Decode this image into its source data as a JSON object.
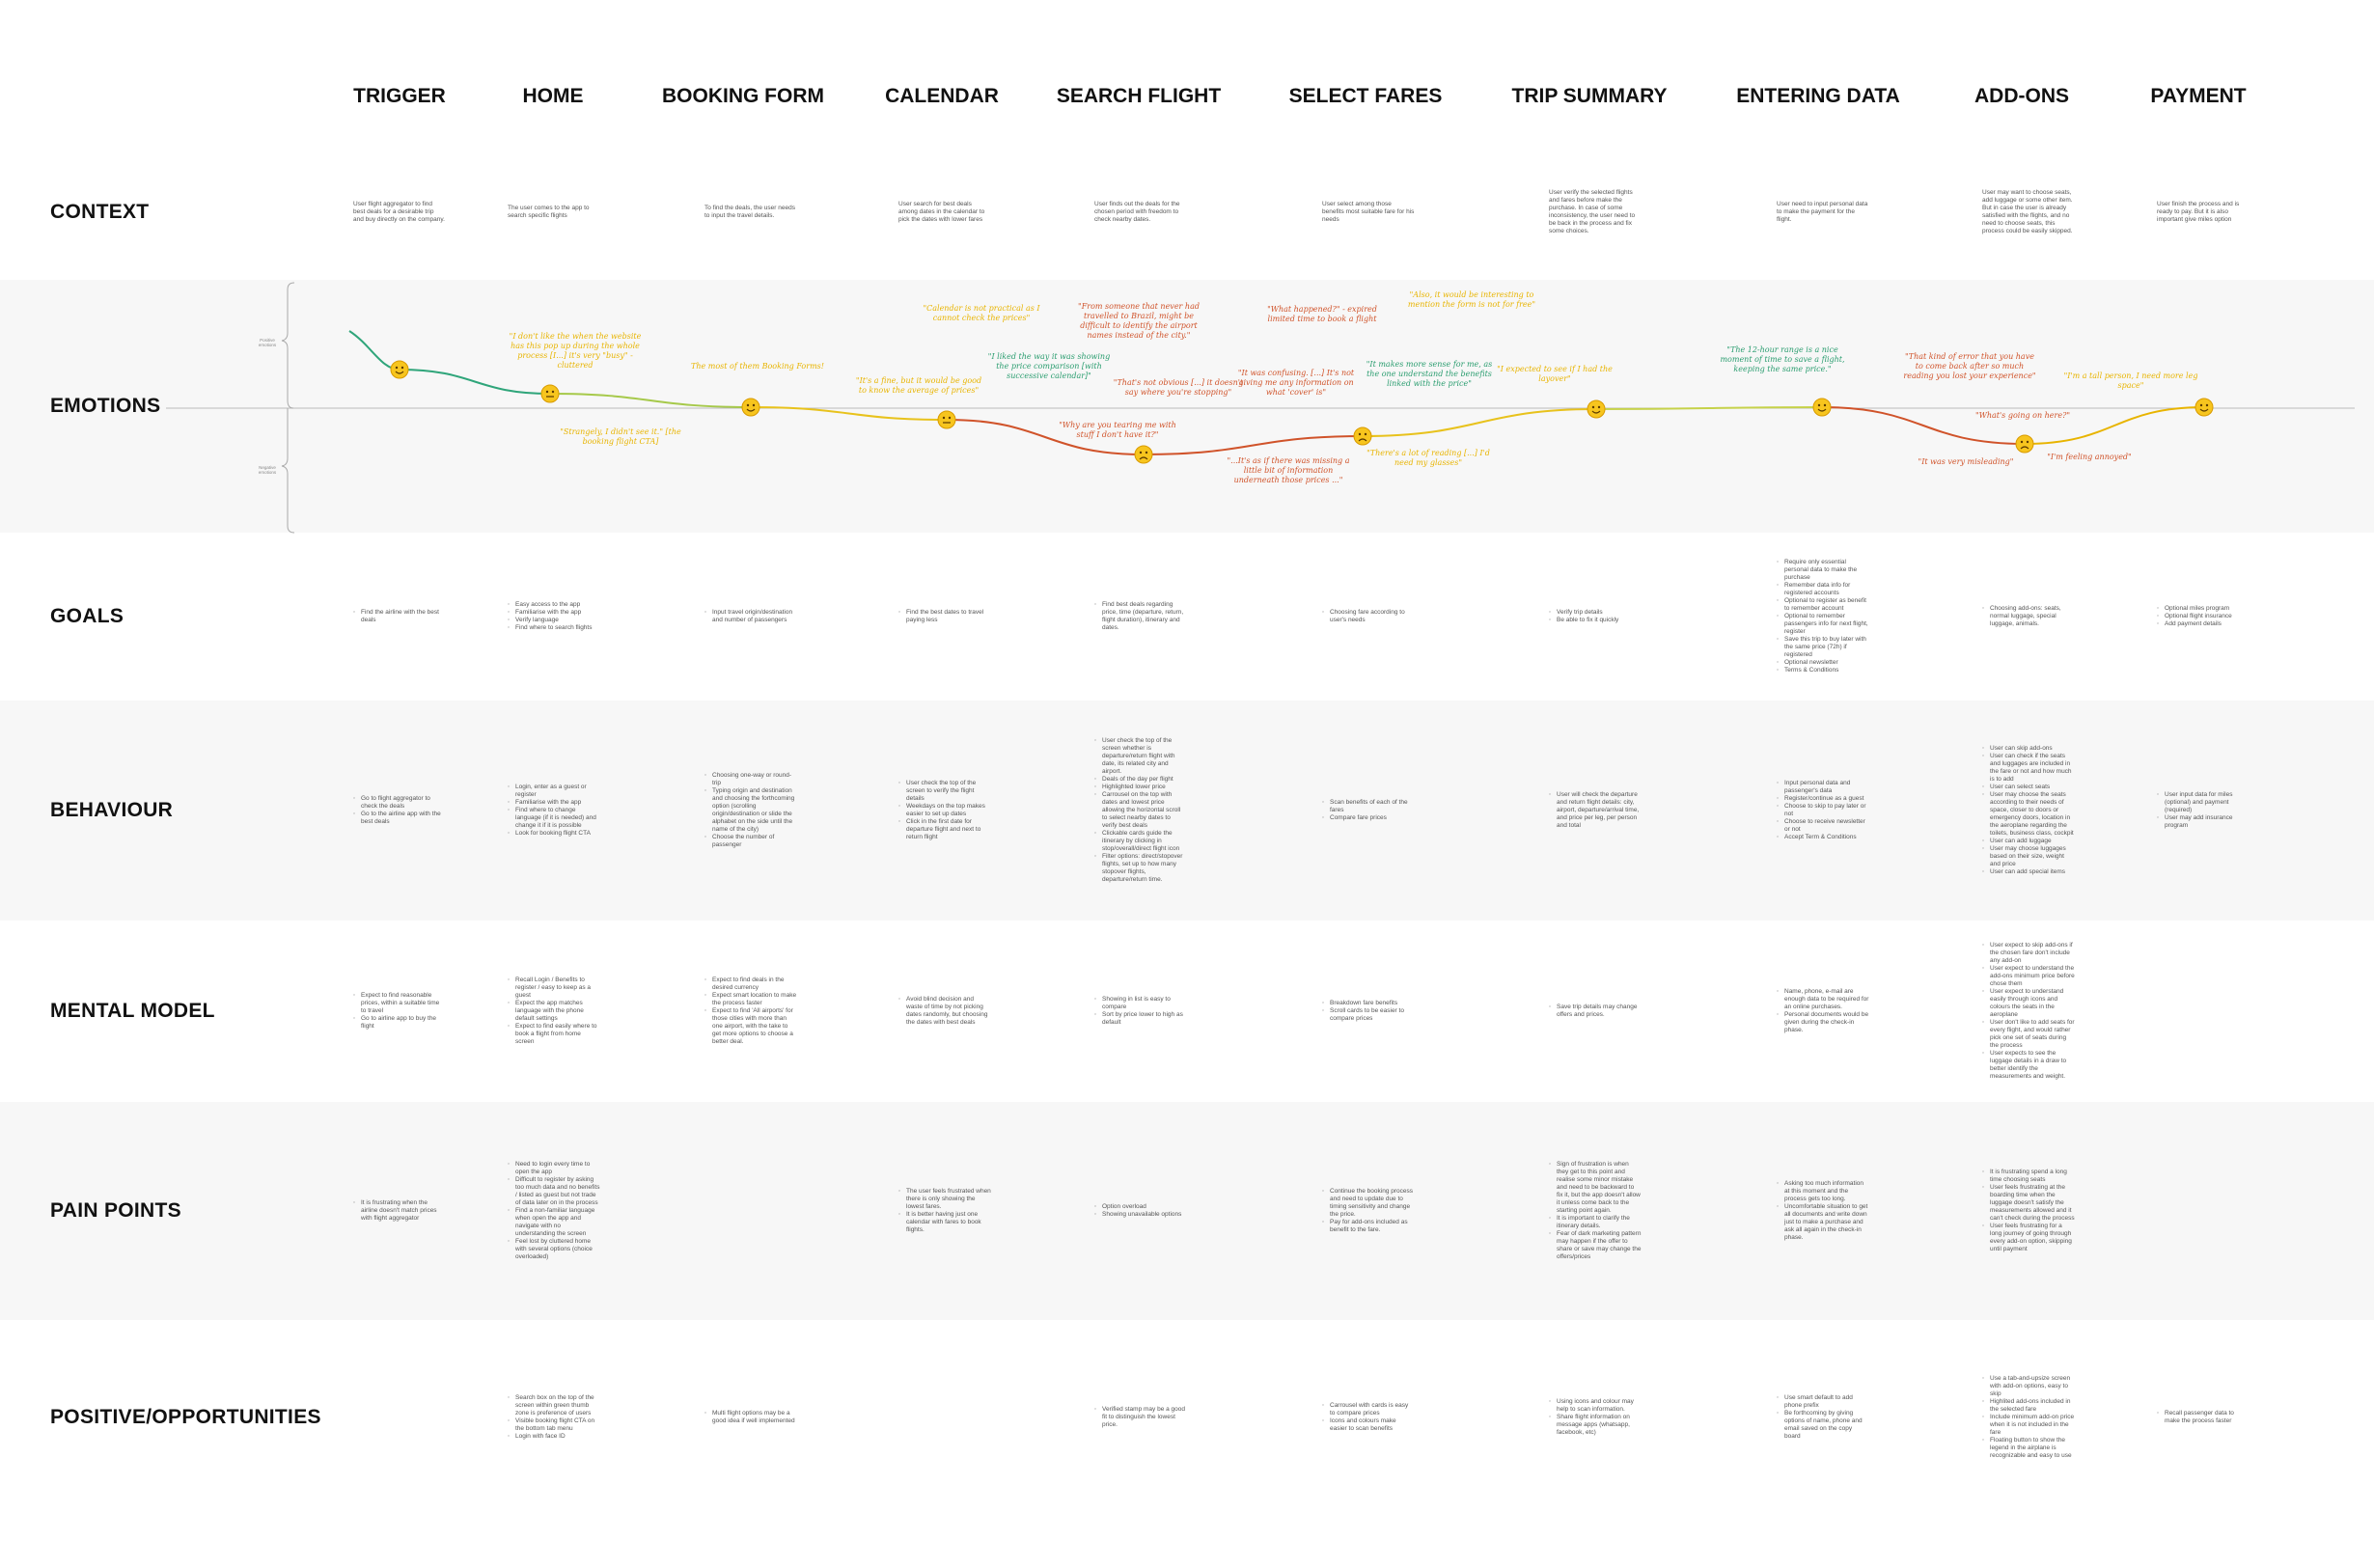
{
  "columns": [
    "TRIGGER",
    "HOME",
    "BOOKING FORM",
    "CALENDAR",
    "SEARCH FLIGHT",
    "SELECT FARES",
    "TRIP SUMMARY",
    "ENTERING DATA",
    "ADD-ONS",
    "PAYMENT"
  ],
  "rows": {
    "context": {
      "label": "CONTEXT",
      "cells": [
        "User flight aggregator to find best deals for a desirable trip and buy directly on the company.",
        "The user comes to the app to search specific flights",
        "To find the deals, the user needs to input the travel details.",
        "User search for best deals among dates in the calendar to pick the dates with lower fares",
        "User finds out the deals for the chosen period with freedom to check nearby dates.",
        "User select among those benefits most suitable fare for his needs",
        "User verify the selected flights and fares before make the purchase. In case of some inconsistency, the user need to be back in the process and fix some choices.",
        "User need to input personal data to make the payment for the flight.",
        "User may want to choose seats, add luggage or some other item. But in case the user is already satisfied with the flights, and no need to choose seats, this process could be easily skipped.",
        "User finish the process and is ready to pay. But it is also important give miles option"
      ]
    },
    "emotions": {
      "label": "EMOTIONS",
      "scale": [
        "Positive emotions",
        "Negative emotions"
      ],
      "quotes": [
        {
          "text": "\"I don't like the when the website has this pop up during the whole process [I...] it's very \"busy\" - cluttered",
          "color": "#e8b400"
        },
        {
          "text": "\"Strangely, I didn't see it.\" [the booking flight CTA]",
          "color": "#e8b400"
        },
        {
          "text": "The most of them Booking Forms!",
          "color": "#e8b400"
        },
        {
          "text": "\"It's a fine, but it would be good to know the average of prices\"",
          "color": "#e8b400"
        },
        {
          "text": "\"Calendar is not practical as I cannot check the prices\"",
          "color": "#e8b400"
        },
        {
          "text": "\"I liked the way it was showing the price comparison [with successive calendar]\"",
          "color": "#2a9d6f"
        },
        {
          "text": "\"From someone that never had travelled to Brazil, might be difficult to identify the airport names instead of the city.\"",
          "color": "#d0532a"
        },
        {
          "text": "\"That's not obvious [...] it doesn't say where you're stopping\"",
          "color": "#d0532a"
        },
        {
          "text": "\"Why are you tearing me with stuff I don't have it?\"",
          "color": "#d0532a"
        },
        {
          "text": "\"What happened?\" - expired limited time to book a flight",
          "color": "#d0532a"
        },
        {
          "text": "\"It was confusing. [...] It's not giving me any information on what 'cover' is\"",
          "color": "#d0532a"
        },
        {
          "text": "\"...It's as if there was missing a little bit of information underneath those prices ...\"",
          "color": "#d0532a"
        },
        {
          "text": "\"It makes more sense for me, as the one understand the benefits linked with the price\"",
          "color": "#2a9d6f"
        },
        {
          "text": "\"Also, it would be interesting to mention the form is not for free\"",
          "color": "#e8b400"
        },
        {
          "text": "\"There's a lot of reading [...] I'd need my glasses\"",
          "color": "#e8b400"
        },
        {
          "text": "\"I expected to see if I had the layover\"",
          "color": "#e8b400"
        },
        {
          "text": "\"The 12-hour range is a nice moment of time to save a flight, keeping the same price.\"",
          "color": "#2a9d6f"
        },
        {
          "text": "\"That kind of error that you have to come back after so much reading you lost your experience\"",
          "color": "#d0532a"
        },
        {
          "text": "\"What's going on here?\"",
          "color": "#d0532a"
        },
        {
          "text": "\"It was very misleading\"",
          "color": "#d0532a"
        },
        {
          "text": "\"I'm feeling annoyed\"",
          "color": "#d0532a"
        },
        {
          "text": "\"I'm a tall person, I need more leg space\"",
          "color": "#e8b400"
        }
      ]
    },
    "goals": {
      "label": "GOALS",
      "cells": [
        [
          "Find the airline with the best deals"
        ],
        [
          "Easy access to the app",
          "Familiarise with the app",
          "Verify language",
          "Find where to search flights"
        ],
        [
          "Input travel origin/destination and number of passengers"
        ],
        [
          "Find the best dates to travel paying less"
        ],
        [
          "Find best deals regarding price, time (departure, return, flight duration), itinerary and dates."
        ],
        [
          "Choosing fare according to user's needs"
        ],
        [
          "Verify trip details",
          "Be able to fix it quickly"
        ],
        [
          "Require only essential personal data to make the purchase",
          "Remember data info for registered accounts",
          "Optional to register as benefit to remember account",
          "Optional to remember passengers info for next flight, register",
          "Save this trip to buy later with the same price (72h) if registered",
          "Optional newsletter",
          "Terms & Conditions"
        ],
        [
          "Choosing add-ons: seats, normal luggage, special luggage, animals."
        ],
        [
          "Optional miles program",
          "Optional flight insurance",
          "Add payment details"
        ]
      ]
    },
    "behaviour": {
      "label": "BEHAVIOUR",
      "cells": [
        [
          "Go to flight aggregator to check the deals",
          "Go to the airline app with the best deals"
        ],
        [
          "Login, enter as a guest or register",
          "Familiarise with the app",
          "Find where to change language (if it is needed) and change it if it is possible",
          "Look for booking flight CTA"
        ],
        [
          "Choosing one-way or round-trip",
          "Typing origin and destination and choosing the forthcoming option (scrolling origin/destination or slide the alphabet on the side until the name of the city)",
          "Choose the number of passenger"
        ],
        [
          "User check the top of the screen to verify the flight details",
          "Weekdays on the top makes easier to set up dates",
          "Click in the first date for departure flight and next to return flight"
        ],
        [
          "User check the top of the screen whether is departure/return flight with date, its related city and airport.",
          "Deals of the day per flight",
          "Highlighted lower price",
          "Carrousel on the top with dates and lowest price allowing the horizontal scroll to select nearby dates to verify best deals",
          "Clickable cards guide the itinerary by clicking in stop/overall/direct flight icon",
          "Filter options: direct/stopover flights, set up to how many stopover flights, departure/return time."
        ],
        [
          "Scan benefits of each of the fares",
          "Compare fare prices"
        ],
        [
          "User will check the departure and return flight details: city, airport, departure/arrival time, and price per leg, per person and total"
        ],
        [
          "Input personal data and passenger's data",
          "Register/continue as a guest",
          "Choose to skip to pay later or not",
          "Choose to receive newsletter or not",
          "Accept Term & Conditions"
        ],
        [
          "User can skip add-ons",
          "User can check if the seats and luggages are included in the fare or not and how much is to add",
          "User can select seats",
          "User may choose the seats according to their needs of space, closer to doors or emergency doors, location in the aeroplane regarding the toilets, business class, cockpit",
          "User can add luggage",
          "User may choose luggages based on their size, weight and price",
          "User can add special items"
        ],
        [
          "User input data for miles (optional) and payment (required)",
          "User may add insurance program"
        ]
      ]
    },
    "mental_model": {
      "label": "MENTAL MODEL",
      "cells": [
        [
          "Expect to find reasonable prices, within a suitable time to travel",
          "Go to airline app to buy the flight"
        ],
        [
          "Recall Login / Benefits to register / easy to keep as a guest",
          "Expect the app matches language with the phone default settings",
          "Expect to find easily where to book a flight from home screen"
        ],
        [
          "Expect to find deals in the desired currency",
          "Expect smart location to make the process faster",
          "Expect to find 'All airports' for those cities with more than one airport, with the take to get more options to choose a better deal."
        ],
        [
          "Avoid blind decision and waste of time by not picking dates randomly, but choosing the dates with best deals"
        ],
        [
          "Showing in list is easy to compare",
          "Sort by price lower to high as default"
        ],
        [
          "Breakdown fare benefits",
          "Scroll cards to be easier to compare prices"
        ],
        [
          "Save trip details may change offers and prices."
        ],
        [
          "Name, phone, e-mail are enough data to be required for an online purchases.",
          "Personal documents would be given during the check-in phase."
        ],
        [
          "User expect to skip add-ons if the chosen fare don't include any add-on",
          "User expect to understand the add-ons minimum price before chose them",
          "User expect to understand easily through icons and colours the seats in the aeroplane",
          "User don't like to add seats for every flight, and would rather pick one set of seats during the process",
          "User expects to see the luggage details in a draw to better identify the measurements and weight."
        ],
        []
      ]
    },
    "pain_points": {
      "label": "PAIN POINTS",
      "cells": [
        [
          "It is frustrating when the airline doesn't match prices with flight aggregator"
        ],
        [
          "Need to login every time to open the app",
          "Difficult to register by asking too much data and no benefits / listed as guest but not trade of data later on in the process",
          "Find a non-familiar language when open the app and navigate with no understanding the screen",
          "Feel lost by cluttered home with several options (choice overloaded)"
        ],
        [],
        [
          "The user feels frustrated when there is only showing the lowest fares.",
          "It is better having just one calendar with fares to book flights."
        ],
        [
          "Option overload",
          "Showing unavailable options"
        ],
        [
          "Continue the booking process and need to update due to timing sensitivity and change the price.",
          "Pay for add-ons included as benefit to the fare."
        ],
        [
          "Sign of frustration is when they get to this point and realise some minor mistake and need to be backward to fix it, but the app doesn't allow it unless come back to the starting point again.",
          "It is important to clarify the itinerary details.",
          "Fear of dark marketing pattern may happen if the offer to share or save may change the offers/prices"
        ],
        [
          "Asking too much information at this moment and the process gets too long.",
          "Uncomfortable situation to get all documents and write down just to make a purchase and ask all again in the check-in phase."
        ],
        [
          "It is frustrating spend a long time choosing seats",
          "User feels frustrating at the boarding time when the luggage doesn't satisfy the measurements allowed and it can't check during the process",
          "User feels frustrating for a long journey of going through every add-on option, skipping until payment"
        ],
        []
      ]
    },
    "positive": {
      "label": "POSITIVE/OPPORTUNITIES",
      "cells": [
        [],
        [
          "Search box on the top of the screen within green thumb zone is preference of users",
          "Visible booking flight CTA on the bottom tab menu",
          "Login with face ID"
        ],
        [
          "Multi flight options may be a good idea if well implemented"
        ],
        [],
        [
          "Verified stamp may be a good fit to distinguish the lowest price."
        ],
        [
          "Carrousel with cards is easy to compare prices",
          "Icons and colours make easier to scan benefits"
        ],
        [
          "Using icons and colour may help to scan information.",
          "Share flight information on message apps (whatsapp, facebook, etc)"
        ],
        [
          "Use smart default to add phone prefix",
          "Be forthcoming by giving options of name, phone and email saved on the copy board"
        ],
        [
          "Use a tab-and-upsize screen with add-on options, easy to skip",
          "Highlited add-ons included in the selected fare",
          "Include minimum add-on price when it is not included in the fare",
          "Floating button to show the legend in the airplane is recognizable and easy to use"
        ],
        [
          "Recall passenger data to make the process faster"
        ]
      ]
    }
  }
}
